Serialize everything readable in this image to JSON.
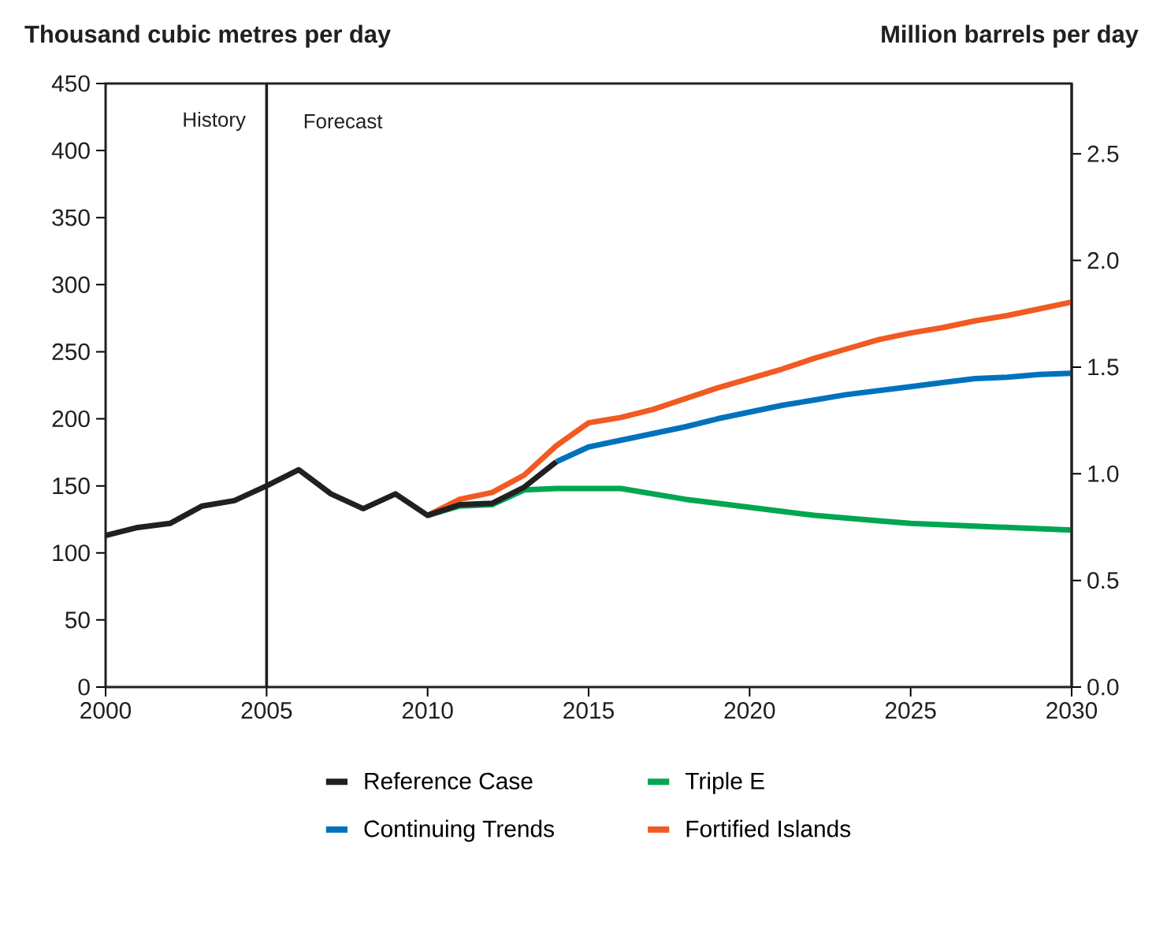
{
  "chart_data": {
    "type": "line",
    "ylabel": "Thousand cubic metres per day",
    "y2label": "Million barrels per day",
    "xlim": [
      2000,
      2030
    ],
    "xticks": [
      2000,
      2005,
      2010,
      2015,
      2020,
      2025,
      2030
    ],
    "ylim": [
      0,
      450
    ],
    "yticks": [
      0,
      50,
      100,
      150,
      200,
      250,
      300,
      350,
      400,
      450
    ],
    "y2lim": [
      0,
      2.83
    ],
    "y2ticks": [
      {
        "value": 0,
        "label": "0.0"
      },
      0.5,
      {
        "value": 1,
        "label": "1.0"
      },
      1.5,
      {
        "value": 2,
        "label": "2.0"
      },
      2.5
    ],
    "grid": false,
    "legend": "bottom",
    "marker": "none",
    "line_style": "solid",
    "ref_lines": [
      {
        "axis": "x",
        "value": 2005,
        "color": "#231f20"
      }
    ],
    "annotations": [
      "History",
      "Forecast"
    ],
    "series": [
      {
        "name": "Reference Case",
        "color": "#231f20",
        "x": [
          2000,
          2001,
          2002,
          2003,
          2004,
          2005,
          2006,
          2007,
          2008,
          2009,
          2010,
          2011,
          2012,
          2013,
          2014
        ],
        "values": [
          113,
          119,
          122,
          135,
          139,
          150,
          162,
          144,
          133,
          144,
          128,
          136,
          137,
          149,
          168
        ]
      },
      {
        "name": "Triple E",
        "color": "#00a651",
        "x": [
          2010,
          2011,
          2012,
          2013,
          2014,
          2015,
          2016,
          2017,
          2018,
          2019,
          2020,
          2021,
          2022,
          2023,
          2024,
          2025,
          2026,
          2027,
          2028,
          2029,
          2030
        ],
        "values": [
          128,
          135,
          136,
          147,
          148,
          148,
          148,
          144,
          140,
          137,
          134,
          131,
          128,
          126,
          124,
          122,
          121,
          120,
          119,
          118,
          117
        ]
      },
      {
        "name": "Continuing Trends",
        "color": "#0072bc",
        "x": [
          2014,
          2015,
          2016,
          2017,
          2018,
          2019,
          2020,
          2021,
          2022,
          2023,
          2024,
          2025,
          2026,
          2027,
          2028,
          2029,
          2030
        ],
        "values": [
          168,
          179,
          184,
          189,
          194,
          200,
          205,
          210,
          214,
          218,
          221,
          224,
          227,
          230,
          231,
          233,
          234
        ]
      },
      {
        "name": "Fortified Islands",
        "color": "#f15a22",
        "x": [
          2010,
          2011,
          2012,
          2013,
          2014,
          2015,
          2016,
          2017,
          2018,
          2019,
          2020,
          2021,
          2022,
          2023,
          2024,
          2025,
          2026,
          2027,
          2028,
          2029,
          2030
        ],
        "values": [
          128,
          140,
          145,
          158,
          180,
          197,
          201,
          207,
          215,
          223,
          230,
          237,
          245,
          252,
          259,
          264,
          268,
          273,
          277,
          282,
          287
        ]
      }
    ]
  }
}
